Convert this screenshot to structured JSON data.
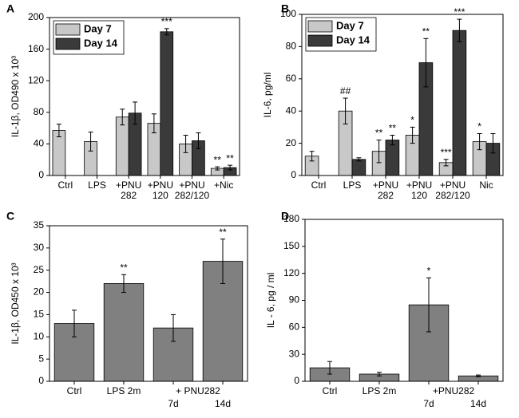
{
  "chart_data": [
    {
      "type": "bar",
      "panel_label": "A",
      "ylabel": "IL-1β, OD490 x 10³",
      "categories": [
        "Ctrl",
        "LPS",
        "+PNU 282",
        "+PNU 120",
        "+PNU 282/120",
        "+Nic"
      ],
      "series": [
        {
          "name": "Day 7",
          "color": "#c8c8c8",
          "values": [
            57,
            43,
            74,
            66,
            40,
            9
          ],
          "errors": [
            8,
            12,
            10,
            12,
            11,
            2
          ],
          "significance": [
            null,
            null,
            null,
            null,
            null,
            "**"
          ]
        },
        {
          "name": "Day 14",
          "color": "#3a3a3a",
          "values": [
            null,
            null,
            79,
            182,
            44,
            10
          ],
          "errors": [
            null,
            null,
            14,
            4,
            10,
            3
          ],
          "significance": [
            null,
            null,
            null,
            "***",
            null,
            "**"
          ]
        }
      ],
      "ylim": [
        0,
        200
      ],
      "yticks": [
        0,
        40,
        80,
        120,
        160,
        200
      ],
      "legend": "upper left"
    },
    {
      "type": "bar",
      "panel_label": "B",
      "ylabel": "IL-6, pg/ml",
      "categories": [
        "Ctrl",
        "LPS",
        "+PNU 282",
        "+PNU 120",
        "+PNU 282/120",
        "Nic"
      ],
      "series": [
        {
          "name": "Day 7",
          "color": "#c8c8c8",
          "values": [
            12,
            40,
            15,
            25,
            8,
            21
          ],
          "errors": [
            3,
            8,
            7,
            5,
            2,
            5
          ],
          "significance": [
            null,
            "##",
            "**",
            "*",
            "***",
            "*"
          ]
        },
        {
          "name": "Day 14",
          "color": "#3a3a3a",
          "values": [
            null,
            10,
            22,
            70,
            90,
            20
          ],
          "errors": [
            null,
            1,
            3,
            15,
            7,
            6
          ],
          "significance": [
            null,
            null,
            "**",
            "**",
            "***",
            null
          ]
        }
      ],
      "ylim": [
        0,
        100
      ],
      "yticks": [
        0,
        20,
        40,
        60,
        80,
        100
      ],
      "legend": "upper left"
    },
    {
      "type": "bar",
      "panel_label": "C",
      "ylabel": "IL-1β, OD450 x 10³",
      "categories": [
        "Ctrl",
        "LPS 2m",
        "7d",
        "14d"
      ],
      "group_label": "+ PNU282",
      "series": [
        {
          "color": "#808080",
          "values": [
            13,
            22,
            12,
            27
          ],
          "errors": [
            3,
            2,
            3,
            5
          ],
          "significance": [
            null,
            "**",
            null,
            "**"
          ]
        }
      ],
      "ylim": [
        0,
        35
      ],
      "yticks": [
        0,
        5,
        10,
        15,
        20,
        25,
        30,
        35
      ]
    },
    {
      "type": "bar",
      "panel_label": "D",
      "ylabel": "IL - 6, pg / ml",
      "categories": [
        "Ctrl",
        "LPS 2m",
        "7d",
        "14d"
      ],
      "group_label": "+PNU282",
      "series": [
        {
          "color": "#808080",
          "values": [
            15,
            8,
            85,
            6
          ],
          "errors": [
            7,
            2,
            30,
            1
          ],
          "significance": [
            null,
            null,
            "*",
            null
          ]
        }
      ],
      "ylim": [
        0,
        180
      ],
      "yticks": [
        0,
        30,
        60,
        90,
        120,
        150,
        180
      ]
    }
  ]
}
